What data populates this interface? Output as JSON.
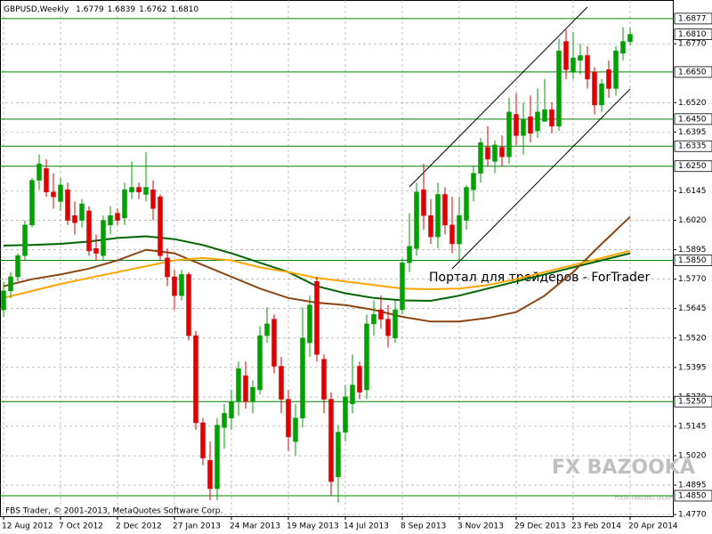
{
  "chart_data": {
    "type": "candlestick",
    "title": "GBPUSD,Weekly",
    "header_values": [
      "1.6779",
      "1.6839",
      "1.6762",
      "1.6810"
    ],
    "copyright": "FBS Trader, © 2001-2013, MetaQuotes Software Corp.",
    "watermarks": [
      "Портал для трейдеров - ForTrader",
      "FX BAZOOKA",
      "YOUR TRADING WEAPON"
    ],
    "categories": [
      "12 Aug 2012",
      null,
      null,
      null,
      null,
      null,
      null,
      null,
      "7 Oct 2012",
      null,
      null,
      null,
      null,
      null,
      null,
      null,
      "2 Dec 2012",
      null,
      null,
      null,
      null,
      null,
      null,
      null,
      "27 Jan 2013",
      null,
      null,
      null,
      null,
      null,
      null,
      null,
      "24 Mar 2013",
      null,
      null,
      null,
      null,
      null,
      null,
      null,
      "19 May 2013",
      null,
      null,
      null,
      null,
      null,
      null,
      null,
      "14 Jul 2013",
      null,
      null,
      null,
      null,
      null,
      null,
      null,
      "8 Sep 2013",
      null,
      null,
      null,
      null,
      null,
      null,
      null,
      "3 Nov 2013",
      null,
      null,
      null,
      null,
      null,
      null,
      null,
      "29 Dec 2013",
      null,
      null,
      null,
      null,
      null,
      null,
      null,
      "23 Feb 2014",
      null,
      null,
      null,
      null,
      null,
      null,
      null,
      "20 Apr 2014"
    ],
    "open": [
      1.564,
      1.572,
      1.578,
      1.587,
      1.6,
      1.619,
      1.624,
      1.614,
      1.61,
      1.615,
      1.604,
      1.602,
      1.606,
      1.59,
      1.587,
      1.6,
      1.605,
      1.603,
      1.614,
      1.616,
      1.613,
      1.615,
      1.612,
      1.586,
      1.578,
      1.57,
      1.579,
      1.553,
      1.516,
      1.5,
      1.488,
      1.514,
      1.518,
      1.525,
      1.536,
      1.525,
      1.53,
      1.553,
      1.56,
      1.54,
      1.526,
      1.508,
      1.518,
      1.55,
      1.576,
      1.543,
      1.526,
      1.493,
      1.512,
      1.524,
      1.54,
      1.53,
      1.558,
      1.564,
      1.56,
      1.552,
      1.564,
      1.584,
      1.59,
      1.615,
      1.604,
      1.595,
      1.613,
      1.6,
      1.592,
      1.602,
      1.615,
      1.622,
      1.633,
      1.627,
      1.633,
      1.629,
      1.647,
      1.638,
      1.646,
      1.64,
      1.644,
      1.649,
      1.642,
      1.678,
      1.665,
      1.67,
      1.672,
      1.665,
      1.651,
      1.666,
      1.658,
      1.673,
      1.6779
    ],
    "high": [
      1.576,
      1.58,
      1.588,
      1.602,
      1.62,
      1.63,
      1.628,
      1.622,
      1.62,
      1.618,
      1.61,
      1.611,
      1.608,
      1.596,
      1.604,
      1.608,
      1.607,
      1.618,
      1.627,
      1.618,
      1.631,
      1.619,
      1.613,
      1.59,
      1.581,
      1.581,
      1.58,
      1.555,
      1.518,
      1.508,
      1.518,
      1.524,
      1.53,
      1.542,
      1.542,
      1.534,
      1.557,
      1.565,
      1.562,
      1.544,
      1.53,
      1.524,
      1.565,
      1.57,
      1.578,
      1.545,
      1.529,
      1.515,
      1.532,
      1.545,
      1.542,
      1.562,
      1.568,
      1.57,
      1.566,
      1.568,
      1.586,
      1.605,
      1.618,
      1.626,
      1.611,
      1.618,
      1.616,
      1.612,
      1.612,
      1.617,
      1.625,
      1.637,
      1.642,
      1.636,
      1.638,
      1.654,
      1.656,
      1.652,
      1.655,
      1.658,
      1.662,
      1.652,
      1.679,
      1.683,
      1.682,
      1.677,
      1.676,
      1.667,
      1.662,
      1.67,
      1.676,
      1.684,
      1.6839
    ],
    "low": [
      1.561,
      1.569,
      1.576,
      1.585,
      1.599,
      1.615,
      1.612,
      1.607,
      1.606,
      1.6,
      1.596,
      1.599,
      1.587,
      1.585,
      1.585,
      1.596,
      1.6,
      1.6,
      1.611,
      1.611,
      1.61,
      1.602,
      1.585,
      1.574,
      1.564,
      1.568,
      1.551,
      1.513,
      1.498,
      1.483,
      1.483,
      1.505,
      1.513,
      1.519,
      1.522,
      1.52,
      1.528,
      1.55,
      1.537,
      1.52,
      1.504,
      1.502,
      1.514,
      1.544,
      1.542,
      1.52,
      1.485,
      1.482,
      1.508,
      1.52,
      1.526,
      1.526,
      1.553,
      1.556,
      1.548,
      1.55,
      1.562,
      1.58,
      1.587,
      1.598,
      1.592,
      1.59,
      1.596,
      1.588,
      1.585,
      1.598,
      1.61,
      1.618,
      1.625,
      1.622,
      1.625,
      1.626,
      1.634,
      1.63,
      1.635,
      1.637,
      1.644,
      1.639,
      1.64,
      1.662,
      1.662,
      1.664,
      1.658,
      1.647,
      1.648,
      1.654,
      1.655,
      1.67,
      1.6762
    ],
    "close": [
      1.572,
      1.578,
      1.587,
      1.6,
      1.619,
      1.626,
      1.614,
      1.612,
      1.617,
      1.602,
      1.601,
      1.609,
      1.589,
      1.588,
      1.602,
      1.604,
      1.602,
      1.615,
      1.616,
      1.614,
      1.616,
      1.607,
      1.587,
      1.578,
      1.57,
      1.579,
      1.553,
      1.516,
      1.501,
      1.488,
      1.515,
      1.52,
      1.525,
      1.539,
      1.525,
      1.531,
      1.553,
      1.558,
      1.54,
      1.526,
      1.51,
      1.518,
      1.552,
      1.566,
      1.545,
      1.526,
      1.491,
      1.512,
      1.527,
      1.532,
      1.529,
      1.558,
      1.562,
      1.56,
      1.553,
      1.564,
      1.584,
      1.591,
      1.614,
      1.604,
      1.595,
      1.613,
      1.6,
      1.592,
      1.604,
      1.616,
      1.622,
      1.635,
      1.628,
      1.634,
      1.629,
      1.648,
      1.638,
      1.645,
      1.639,
      1.648,
      1.649,
      1.642,
      1.674,
      1.666,
      1.671,
      1.672,
      1.662,
      1.651,
      1.66,
      1.658,
      1.674,
      1.678,
      1.681
    ],
    "up_color": "#00a000",
    "down_color": "#e00000",
    "lines": [
      {
        "color": "#006400",
        "x": [
          0,
          4,
          8,
          12,
          16,
          20,
          24,
          28,
          32,
          36,
          40,
          44,
          48,
          52,
          56,
          60,
          64,
          68,
          72,
          76,
          80,
          84,
          88
        ],
        "values": [
          1.5913,
          1.5915,
          1.592,
          1.593,
          1.5945,
          1.5952,
          1.594,
          1.5915,
          1.588,
          1.584,
          1.58,
          1.574,
          1.571,
          1.569,
          1.568,
          1.5678,
          1.57,
          1.573,
          1.576,
          1.579,
          1.582,
          1.585,
          1.588
        ]
      },
      {
        "color": "#8b4513",
        "x": [
          0,
          4,
          8,
          12,
          16,
          20,
          24,
          28,
          32,
          36,
          40,
          44,
          48,
          52,
          56,
          60,
          64,
          68,
          72,
          76,
          80,
          84,
          88
        ],
        "values": [
          1.574,
          1.577,
          1.579,
          1.5815,
          1.585,
          1.5895,
          1.588,
          1.583,
          1.578,
          1.573,
          1.569,
          1.567,
          1.566,
          1.564,
          1.561,
          1.559,
          1.559,
          1.5605,
          1.563,
          1.57,
          1.58,
          1.592,
          1.6035
        ]
      },
      {
        "color": "#ffa500",
        "x": [
          0,
          4,
          8,
          12,
          16,
          20,
          24,
          28,
          32,
          36,
          40,
          44,
          48,
          52,
          56,
          60,
          64,
          68,
          72,
          76,
          80,
          84,
          88
        ],
        "values": [
          1.569,
          1.572,
          1.575,
          1.5775,
          1.58,
          1.5825,
          1.585,
          1.586,
          1.585,
          1.582,
          1.58,
          1.5775,
          1.576,
          1.5745,
          1.573,
          1.5727,
          1.573,
          1.5745,
          1.577,
          1.58,
          1.583,
          1.586,
          1.589
        ]
      }
    ],
    "trendlines": [
      {
        "x": [
          57,
          82
        ],
        "values": [
          1.6162,
          1.6926
        ]
      },
      {
        "x": [
          63,
          88
        ],
        "values": [
          1.5814,
          1.6578
        ]
      }
    ],
    "level_color": "#008000",
    "levels": [
      {
        "value": 1.6877,
        "label": "1.6877"
      },
      {
        "value": 1.665,
        "label": "1.6650"
      },
      {
        "value": 1.645,
        "label": "1.6450"
      },
      {
        "value": 1.6335,
        "label": "1.6335"
      },
      {
        "value": 1.625,
        "label": "1.6250"
      },
      {
        "value": 1.585,
        "label": "1.5850"
      },
      {
        "value": 1.525,
        "label": "1.5250"
      },
      {
        "value": 1.485,
        "label": "1.4850"
      }
    ],
    "current_price": {
      "value": 1.681,
      "label": "1.6810"
    },
    "ylim": [
      1.4763,
      1.6956
    ],
    "yticks": [
      {
        "value": 1.477,
        "label": "1.4770"
      },
      {
        "value": 1.4895,
        "label": "1.4895"
      },
      {
        "value": 1.502,
        "label": "1.5020"
      },
      {
        "value": 1.5145,
        "label": "1.5145"
      },
      {
        "value": 1.527,
        "label": "1.5270"
      },
      {
        "value": 1.5395,
        "label": "1.5395"
      },
      {
        "value": 1.552,
        "label": "1.5520"
      },
      {
        "value": 1.5645,
        "label": "1.5645"
      },
      {
        "value": 1.577,
        "label": "1.5770"
      },
      {
        "value": 1.5895,
        "label": "1.5895"
      },
      {
        "value": 1.602,
        "label": "1.6020"
      },
      {
        "value": 1.6145,
        "label": "1.6145"
      },
      {
        "value": 1.6395,
        "label": "1.6395"
      },
      {
        "value": 1.652,
        "label": "1.6520"
      },
      {
        "value": 1.677,
        "label": "1.6770"
      }
    ],
    "grid": true
  }
}
